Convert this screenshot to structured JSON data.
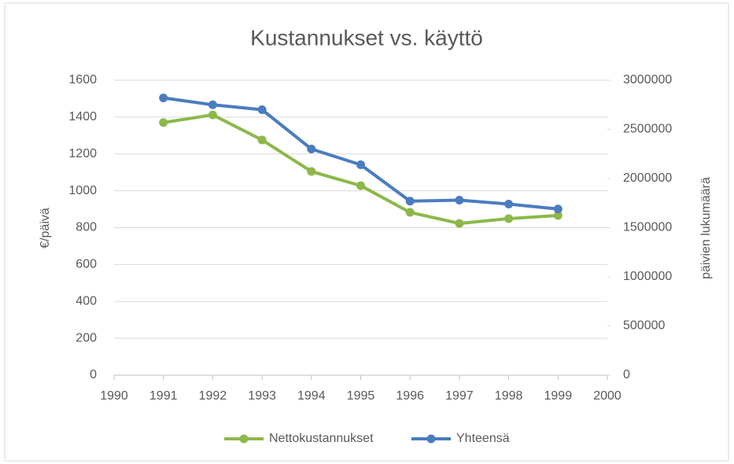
{
  "chart_data": {
    "type": "line",
    "title": "Kustannukset vs. käyttö",
    "y_label": "€/päivä",
    "y2_label": "päivien lukumäärä",
    "x": [
      1991,
      1992,
      1993,
      1994,
      1995,
      1996,
      1997,
      1998,
      1999
    ],
    "xlim": [
      1990,
      2000
    ],
    "xticks": [
      1990,
      1991,
      1992,
      1993,
      1994,
      1995,
      1996,
      1997,
      1998,
      1999,
      2000
    ],
    "ylim": [
      0,
      1600
    ],
    "yticks": [
      0,
      200,
      400,
      600,
      800,
      1000,
      1200,
      1400,
      1600
    ],
    "y2lim": [
      0,
      3000000
    ],
    "y2ticks": [
      0,
      500000,
      1000000,
      1500000,
      2000000,
      2500000,
      3000000
    ],
    "grid": true,
    "legend": "bottom",
    "series": [
      {
        "name": "Nettokustannukset",
        "color": "#8cb84a",
        "axis": "y",
        "values": [
          1370,
          1412,
          1276,
          1105,
          1028,
          883,
          823,
          849,
          866
        ]
      },
      {
        "name": "Yhteensä",
        "color": "#4a7cc0",
        "axis": "y2",
        "values": [
          2820000,
          2750000,
          2700000,
          2300000,
          2140000,
          1770000,
          1780000,
          1740000,
          1690000
        ]
      }
    ]
  }
}
